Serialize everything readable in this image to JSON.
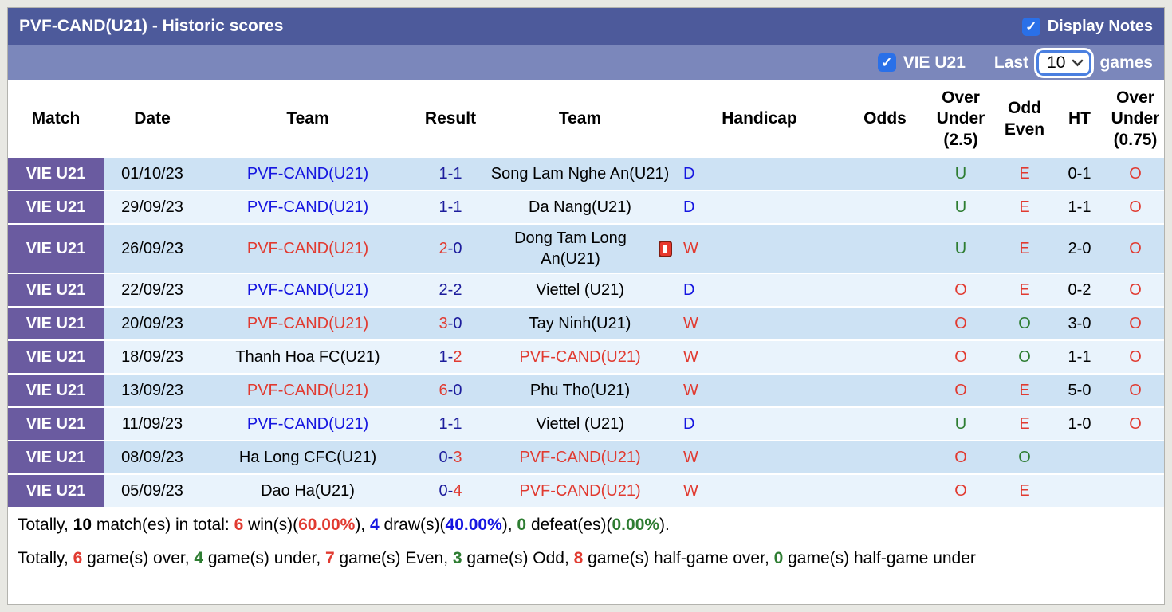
{
  "header": {
    "title": "PVF-CAND(U21) - Historic scores",
    "display_notes_label": "Display Notes"
  },
  "filter_bar": {
    "league_label": "VIE U21",
    "last_label": "Last",
    "games_count": "10",
    "games_label": "games"
  },
  "icons": {
    "check": "✓",
    "chevron_down": "chevron-down",
    "red_card": "red-card"
  },
  "colors": {
    "header_bar": "#4d5a9b",
    "filter_bar": "#7b87bb",
    "league_badge": "#6a5ba0",
    "row_odd": "#cde2f4",
    "row_even": "#e9f3fc",
    "checkbox_blue": "#2a70e8",
    "win_red": "#e13a30",
    "link_blue": "#1515e0",
    "score_navy": "#1c1c9c",
    "green": "#2e7d32"
  },
  "table": {
    "columns": [
      "Match",
      "Date",
      "Team",
      "Result",
      "Team",
      "Handicap",
      "Odds",
      "Over Under (2.5)",
      "Odd Even",
      "HT",
      "Over Under (0.75)"
    ],
    "rows": [
      {
        "match": "VIE U21",
        "date": "01/10/23",
        "team1": {
          "name": "PVF-CAND(U21)",
          "color": "blue"
        },
        "result": {
          "home": "1",
          "away": "1",
          "home_red": false,
          "away_red": false
        },
        "team2": {
          "name": "Song Lam Nghe An(U21)",
          "color": "black",
          "red_card": false
        },
        "handicap": {
          "text": "D",
          "color": "blue"
        },
        "odds": "",
        "ou25": {
          "text": "U",
          "color": "green"
        },
        "odd_even": {
          "text": "E",
          "color": "red"
        },
        "ht": "0-1",
        "ou075": {
          "text": "O",
          "color": "red"
        }
      },
      {
        "match": "VIE U21",
        "date": "29/09/23",
        "team1": {
          "name": "PVF-CAND(U21)",
          "color": "blue"
        },
        "result": {
          "home": "1",
          "away": "1",
          "home_red": false,
          "away_red": false
        },
        "team2": {
          "name": "Da Nang(U21)",
          "color": "black",
          "red_card": false
        },
        "handicap": {
          "text": "D",
          "color": "blue"
        },
        "odds": "",
        "ou25": {
          "text": "U",
          "color": "green"
        },
        "odd_even": {
          "text": "E",
          "color": "red"
        },
        "ht": "1-1",
        "ou075": {
          "text": "O",
          "color": "red"
        }
      },
      {
        "match": "VIE U21",
        "date": "26/09/23",
        "team1": {
          "name": "PVF-CAND(U21)",
          "color": "red"
        },
        "result": {
          "home": "2",
          "away": "0",
          "home_red": true,
          "away_red": false
        },
        "team2": {
          "name": "Dong Tam Long An(U21)",
          "color": "black",
          "red_card": true
        },
        "handicap": {
          "text": "W",
          "color": "red"
        },
        "odds": "",
        "ou25": {
          "text": "U",
          "color": "green"
        },
        "odd_even": {
          "text": "E",
          "color": "red"
        },
        "ht": "2-0",
        "ou075": {
          "text": "O",
          "color": "red"
        }
      },
      {
        "match": "VIE U21",
        "date": "22/09/23",
        "team1": {
          "name": "PVF-CAND(U21)",
          "color": "blue"
        },
        "result": {
          "home": "2",
          "away": "2",
          "home_red": false,
          "away_red": false
        },
        "team2": {
          "name": "Viettel (U21)",
          "color": "black",
          "red_card": false
        },
        "handicap": {
          "text": "D",
          "color": "blue"
        },
        "odds": "",
        "ou25": {
          "text": "O",
          "color": "red"
        },
        "odd_even": {
          "text": "E",
          "color": "red"
        },
        "ht": "0-2",
        "ou075": {
          "text": "O",
          "color": "red"
        }
      },
      {
        "match": "VIE U21",
        "date": "20/09/23",
        "team1": {
          "name": "PVF-CAND(U21)",
          "color": "red"
        },
        "result": {
          "home": "3",
          "away": "0",
          "home_red": true,
          "away_red": false
        },
        "team2": {
          "name": "Tay Ninh(U21)",
          "color": "black",
          "red_card": false
        },
        "handicap": {
          "text": "W",
          "color": "red"
        },
        "odds": "",
        "ou25": {
          "text": "O",
          "color": "red"
        },
        "odd_even": {
          "text": "O",
          "color": "green"
        },
        "ht": "3-0",
        "ou075": {
          "text": "O",
          "color": "red"
        }
      },
      {
        "match": "VIE U21",
        "date": "18/09/23",
        "team1": {
          "name": "Thanh Hoa FC(U21)",
          "color": "black"
        },
        "result": {
          "home": "1",
          "away": "2",
          "home_red": false,
          "away_red": true
        },
        "team2": {
          "name": "PVF-CAND(U21)",
          "color": "red",
          "red_card": false
        },
        "handicap": {
          "text": "W",
          "color": "red"
        },
        "odds": "",
        "ou25": {
          "text": "O",
          "color": "red"
        },
        "odd_even": {
          "text": "O",
          "color": "green"
        },
        "ht": "1-1",
        "ou075": {
          "text": "O",
          "color": "red"
        }
      },
      {
        "match": "VIE U21",
        "date": "13/09/23",
        "team1": {
          "name": "PVF-CAND(U21)",
          "color": "red"
        },
        "result": {
          "home": "6",
          "away": "0",
          "home_red": true,
          "away_red": false
        },
        "team2": {
          "name": "Phu Tho(U21)",
          "color": "black",
          "red_card": false
        },
        "handicap": {
          "text": "W",
          "color": "red"
        },
        "odds": "",
        "ou25": {
          "text": "O",
          "color": "red"
        },
        "odd_even": {
          "text": "E",
          "color": "red"
        },
        "ht": "5-0",
        "ou075": {
          "text": "O",
          "color": "red"
        }
      },
      {
        "match": "VIE U21",
        "date": "11/09/23",
        "team1": {
          "name": "PVF-CAND(U21)",
          "color": "blue"
        },
        "result": {
          "home": "1",
          "away": "1",
          "home_red": false,
          "away_red": false
        },
        "team2": {
          "name": "Viettel (U21)",
          "color": "black",
          "red_card": false
        },
        "handicap": {
          "text": "D",
          "color": "blue"
        },
        "odds": "",
        "ou25": {
          "text": "U",
          "color": "green"
        },
        "odd_even": {
          "text": "E",
          "color": "red"
        },
        "ht": "1-0",
        "ou075": {
          "text": "O",
          "color": "red"
        }
      },
      {
        "match": "VIE U21",
        "date": "08/09/23",
        "team1": {
          "name": "Ha Long CFC(U21)",
          "color": "black"
        },
        "result": {
          "home": "0",
          "away": "3",
          "home_red": false,
          "away_red": true
        },
        "team2": {
          "name": "PVF-CAND(U21)",
          "color": "red",
          "red_card": false
        },
        "handicap": {
          "text": "W",
          "color": "red"
        },
        "odds": "",
        "ou25": {
          "text": "O",
          "color": "red"
        },
        "odd_even": {
          "text": "O",
          "color": "green"
        },
        "ht": "",
        "ou075": {
          "text": "",
          "color": "red"
        }
      },
      {
        "match": "VIE U21",
        "date": "05/09/23",
        "team1": {
          "name": "Dao Ha(U21)",
          "color": "black"
        },
        "result": {
          "home": "0",
          "away": "4",
          "home_red": false,
          "away_red": true
        },
        "team2": {
          "name": "PVF-CAND(U21)",
          "color": "red",
          "red_card": false
        },
        "handicap": {
          "text": "W",
          "color": "red"
        },
        "odds": "",
        "ou25": {
          "text": "O",
          "color": "red"
        },
        "odd_even": {
          "text": "E",
          "color": "red"
        },
        "ht": "",
        "ou075": {
          "text": "",
          "color": "red"
        }
      }
    ]
  },
  "summary": {
    "line1": [
      {
        "text": "Totally, ",
        "color": "black",
        "bold": false
      },
      {
        "text": "10",
        "color": "black",
        "bold": true
      },
      {
        "text": " match(es) in total: ",
        "color": "black",
        "bold": false
      },
      {
        "text": "6",
        "color": "red",
        "bold": true
      },
      {
        "text": " win(s)(",
        "color": "black",
        "bold": false
      },
      {
        "text": "60.00%",
        "color": "red",
        "bold": true
      },
      {
        "text": "), ",
        "color": "black",
        "bold": false
      },
      {
        "text": "4",
        "color": "blue",
        "bold": true
      },
      {
        "text": " draw(s)(",
        "color": "black",
        "bold": false
      },
      {
        "text": "40.00%",
        "color": "blue",
        "bold": true
      },
      {
        "text": "), ",
        "color": "black",
        "bold": false
      },
      {
        "text": "0",
        "color": "green",
        "bold": true
      },
      {
        "text": " defeat(es)(",
        "color": "black",
        "bold": false
      },
      {
        "text": "0.00%",
        "color": "green",
        "bold": true
      },
      {
        "text": ").",
        "color": "black",
        "bold": false
      }
    ],
    "line2": [
      {
        "text": "Totally, ",
        "color": "black",
        "bold": false
      },
      {
        "text": "6",
        "color": "red",
        "bold": true
      },
      {
        "text": " game(s) over, ",
        "color": "black",
        "bold": false
      },
      {
        "text": "4",
        "color": "green",
        "bold": true
      },
      {
        "text": " game(s) under, ",
        "color": "black",
        "bold": false
      },
      {
        "text": "7",
        "color": "red",
        "bold": true
      },
      {
        "text": " game(s) Even, ",
        "color": "black",
        "bold": false
      },
      {
        "text": "3",
        "color": "green",
        "bold": true
      },
      {
        "text": " game(s) Odd, ",
        "color": "black",
        "bold": false
      },
      {
        "text": "8",
        "color": "red",
        "bold": true
      },
      {
        "text": " game(s) half-game over, ",
        "color": "black",
        "bold": false
      },
      {
        "text": "0",
        "color": "green",
        "bold": true
      },
      {
        "text": " game(s) half-game under",
        "color": "black",
        "bold": false
      }
    ]
  }
}
